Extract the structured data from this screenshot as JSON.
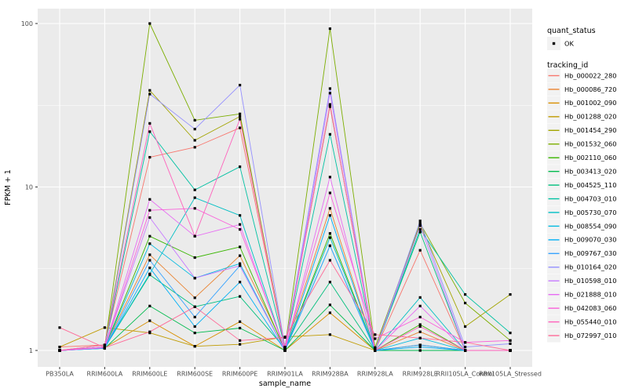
{
  "figure": {
    "background": "#FFFFFF",
    "panel_background": "#EBEBEB",
    "grid_color": "#FFFFFF",
    "axis_text_color": "#4D4D4D",
    "legend_key_background": "#F2F2F2",
    "point_color": "#000000"
  },
  "chart_data": {
    "type": "line",
    "title": "",
    "xlabel": "sample_name",
    "ylabel": "FPKM + 1",
    "y_scale": "log10",
    "y_ticks": [
      1,
      10,
      100
    ],
    "y_tick_labels": [
      "1",
      "10",
      "100"
    ],
    "y_minor_ticks": [
      3.162,
      31.62
    ],
    "ylim": [
      0.79,
      123
    ],
    "grid": true,
    "legend_position": "right",
    "point_shape": "square",
    "categories": [
      "PB350LA",
      "RRIM600LA",
      "RRIM600LE",
      "RRIM600SE",
      "RRIM600PE",
      "RRIM901LA",
      "RRIM928BA",
      "RRIM928LA",
      "RRIM928LE",
      "RRII105LA_Control",
      "RRII105LA_Stressed"
    ],
    "legend": {
      "quant_status_title": "quant_status",
      "quant_status_items": [
        {
          "label": "OK",
          "marker": "black-point"
        }
      ],
      "tracking_title": "tracking_id"
    },
    "series": [
      {
        "name": "Hb_000022_280",
        "color": "#F8766D",
        "values": [
          1.05,
          1.08,
          15.2,
          17.5,
          23.0,
          1.04,
          32.0,
          1.0,
          4.1,
          1.0,
          1.0
        ]
      },
      {
        "name": "Hb_000086_720",
        "color": "#EA8331",
        "values": [
          1.0,
          1.05,
          3.85,
          2.1,
          3.8,
          1.03,
          7.4,
          1.0,
          1.3,
          1.0,
          1.0
        ]
      },
      {
        "name": "Hb_001002_090",
        "color": "#D89000",
        "values": [
          1.0,
          1.04,
          1.52,
          1.06,
          1.5,
          1.0,
          1.7,
          1.0,
          1.08,
          1.0,
          1.0
        ]
      },
      {
        "name": "Hb_001288_020",
        "color": "#C09B00",
        "values": [
          1.05,
          1.38,
          1.28,
          1.06,
          1.09,
          1.21,
          1.25,
          1.0,
          1.0,
          1.0,
          1.0
        ]
      },
      {
        "name": "Hb_001454_290",
        "color": "#A3A500",
        "values": [
          1.0,
          1.08,
          39.0,
          19.3,
          27.0,
          1.05,
          31.0,
          1.04,
          5.9,
          1.4,
          2.2
        ]
      },
      {
        "name": "Hb_001532_060",
        "color": "#7CAE00",
        "values": [
          1.0,
          1.05,
          100.0,
          25.6,
          28.0,
          1.04,
          93.0,
          1.04,
          6.0,
          1.95,
          1.15
        ]
      },
      {
        "name": "Hb_002110_060",
        "color": "#39B600",
        "values": [
          1.0,
          1.04,
          5.0,
          3.7,
          4.3,
          1.0,
          5.2,
          1.0,
          1.44,
          1.0,
          1.0
        ]
      },
      {
        "name": "Hb_003413_020",
        "color": "#00BB4E",
        "values": [
          1.0,
          1.03,
          1.87,
          1.28,
          1.37,
          1.0,
          1.9,
          1.0,
          1.0,
          1.0,
          1.0
        ]
      },
      {
        "name": "Hb_004525_110",
        "color": "#00BF7D",
        "values": [
          1.0,
          1.04,
          2.9,
          1.85,
          2.14,
          1.03,
          2.62,
          1.0,
          5.3,
          1.0,
          1.0
        ]
      },
      {
        "name": "Hb_004703_010",
        "color": "#00C1A3",
        "values": [
          1.0,
          1.05,
          21.8,
          9.6,
          13.3,
          1.04,
          21.0,
          1.0,
          5.5,
          2.2,
          1.28
        ]
      },
      {
        "name": "Hb_005730_070",
        "color": "#00BFC4",
        "values": [
          1.0,
          1.04,
          2.94,
          8.6,
          6.7,
          1.0,
          4.9,
          1.0,
          2.11,
          1.0,
          1.0
        ]
      },
      {
        "name": "Hb_008554_090",
        "color": "#00BAE0",
        "values": [
          1.0,
          1.04,
          4.5,
          2.77,
          3.4,
          1.0,
          4.37,
          1.0,
          1.19,
          1.0,
          1.0
        ]
      },
      {
        "name": "Hb_009070_030",
        "color": "#00B0F6",
        "values": [
          1.0,
          1.03,
          3.2,
          1.4,
          2.62,
          1.0,
          6.7,
          1.0,
          1.05,
          1.0,
          1.0
        ]
      },
      {
        "name": "Hb_009767_030",
        "color": "#35A2FF",
        "values": [
          1.0,
          1.03,
          3.56,
          1.6,
          3.3,
          1.0,
          4.37,
          1.0,
          1.08,
          1.0,
          1.0
        ]
      },
      {
        "name": "Hb_010164_020",
        "color": "#9590FF",
        "values": [
          1.0,
          1.05,
          37.0,
          22.6,
          42.0,
          1.05,
          40.0,
          1.0,
          6.2,
          1.05,
          1.1
        ]
      },
      {
        "name": "Hb_010598_010",
        "color": "#C77CFF",
        "values": [
          1.0,
          1.04,
          6.5,
          2.77,
          3.3,
          1.0,
          37.5,
          1.0,
          5.8,
          1.0,
          1.0
        ]
      },
      {
        "name": "Hb_021888_010",
        "color": "#E76BF3",
        "values": [
          1.0,
          1.05,
          8.4,
          5.0,
          5.9,
          1.0,
          11.5,
          1.0,
          1.87,
          1.0,
          1.0
        ]
      },
      {
        "name": "Hb_042083_060",
        "color": "#FA62DB",
        "values": [
          1.0,
          1.04,
          7.2,
          7.4,
          5.5,
          1.03,
          9.2,
          1.18,
          1.6,
          1.12,
          1.15
        ]
      },
      {
        "name": "Hb_055440_010",
        "color": "#FF62BC",
        "values": [
          1.0,
          1.08,
          24.5,
          5.0,
          26.0,
          1.04,
          31.5,
          1.0,
          1.4,
          1.0,
          1.0
        ]
      },
      {
        "name": "Hb_072997_010",
        "color": "#FF6A98",
        "values": [
          1.38,
          1.04,
          1.3,
          1.85,
          1.15,
          1.2,
          3.56,
          1.25,
          1.19,
          1.12,
          1.0
        ]
      }
    ]
  }
}
